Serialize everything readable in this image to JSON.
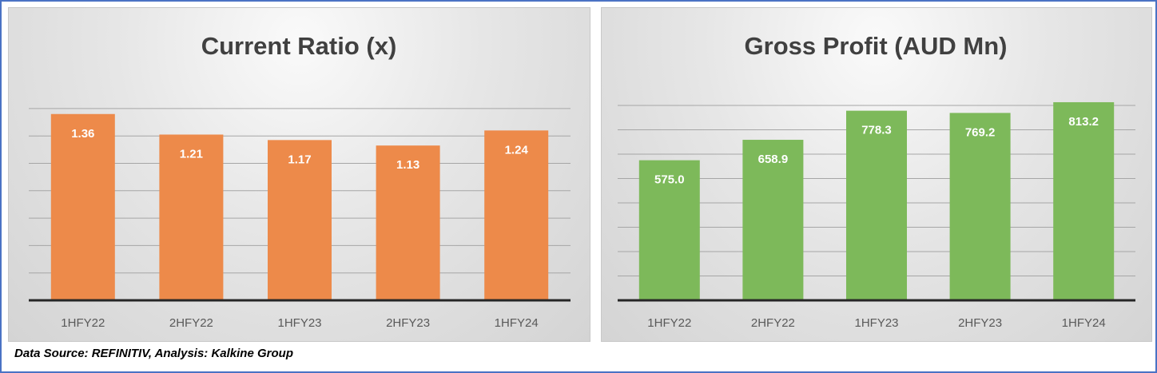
{
  "chart_data": [
    {
      "type": "bar",
      "title": "Current Ratio (x)",
      "categories": [
        "1HFY22",
        "2HFY22",
        "1HFY23",
        "2HFY23",
        "1HFY24"
      ],
      "values": [
        1.36,
        1.21,
        1.17,
        1.13,
        1.24
      ],
      "labels": [
        "1.36",
        "1.21",
        "1.17",
        "1.13",
        "1.24"
      ],
      "ylim": [
        0,
        1.6
      ],
      "grid_step": 0.2,
      "color": "#ed8a4a",
      "xlabel": "",
      "ylabel": ""
    },
    {
      "type": "bar",
      "title": "Gross Profit (AUD Mn)",
      "categories": [
        "1HFY22",
        "2HFY22",
        "1HFY23",
        "2HFY23",
        "1HFY24"
      ],
      "values": [
        575.0,
        658.9,
        778.3,
        769.2,
        813.2
      ],
      "labels": [
        "575.0",
        "658.9",
        "778.3",
        "769.2",
        "813.2"
      ],
      "ylim": [
        0,
        900
      ],
      "grid_step": 100,
      "color": "#7db95a",
      "xlabel": "",
      "ylabel": ""
    }
  ],
  "footer": "Data Source: REFINITIV, Analysis: Kalkine Group"
}
